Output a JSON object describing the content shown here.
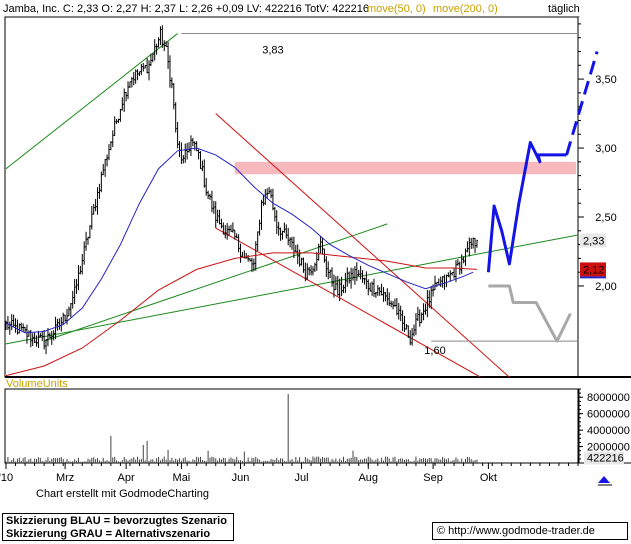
{
  "header": {
    "quote": "Jamba, Inc.  C: 2,33  O: 2,27  H: 2,37  L: 2,26  +0,09  LV: 422216  TotV: 422216",
    "ma50_label": "move(50, 0)",
    "ma200_label": "move(200, 0)",
    "period": "täglich"
  },
  "footer": {
    "made_with": "Chart erstellt mit GodmodeCharting",
    "legend_blue": "Skizzierung BLAU = bevorzugtes Szenario",
    "legend_grey": "Skizzierung GRAU = Alternativszenario",
    "copyright_symbol": "©",
    "url": "http://www.godmode-trader.de"
  },
  "colors": {
    "price": "#000000",
    "ma50": "#2424c8",
    "ma200": "#c81414",
    "trend_green": "#1a8a1a",
    "trend_red": "#d01010",
    "resistance_zone": "#f7b9bd",
    "scenario_blue": "#1414e6",
    "scenario_grey": "#a8a8a8",
    "ma50_text": "#c8a000",
    "volume_label": "#c8a000"
  },
  "chart_data": {
    "type": "candlestick",
    "title": "Jamba, Inc.",
    "price_axis": {
      "ticks": [
        2.0,
        2.5,
        3.0,
        3.5
      ],
      "tick_labels": [
        "2,00",
        "2,50",
        "3,00",
        "3,50"
      ],
      "range": [
        1.34,
        3.95
      ]
    },
    "volume_axis": {
      "ticks": [
        2000000,
        4000000,
        6000000,
        8000000
      ],
      "tick_labels": [
        "2000000",
        "4000000",
        "6000000",
        "8000000"
      ],
      "range": [
        0,
        9000000
      ]
    },
    "months": [
      "'10",
      "Mrz",
      "Apr",
      "Mai",
      "Jun",
      "Jul",
      "Aug",
      "Sep",
      "Okt"
    ],
    "month_start_index": [
      0,
      31,
      63,
      92,
      123,
      155,
      190,
      224,
      253
    ],
    "levels": {
      "high": {
        "value": 3.83,
        "label": "3,83"
      },
      "low": {
        "value": 1.6,
        "label": "1,60"
      }
    },
    "last_close": {
      "value": 2.33,
      "label": "2,33"
    },
    "ma200_last": {
      "value": 2.12,
      "label": "2,12"
    },
    "last_volume": {
      "value": 422216,
      "label": "422216"
    },
    "volume_label": "VolumeUnits",
    "resistance_zone": [
      2.81,
      2.9
    ],
    "anchors": [
      [
        0,
        1.72
      ],
      [
        8,
        1.68
      ],
      [
        14,
        1.62
      ],
      [
        20,
        1.6
      ],
      [
        26,
        1.68
      ],
      [
        31,
        1.78
      ],
      [
        36,
        1.95
      ],
      [
        41,
        2.25
      ],
      [
        46,
        2.55
      ],
      [
        51,
        2.85
      ],
      [
        56,
        3.1
      ],
      [
        61,
        3.35
      ],
      [
        65,
        3.5
      ],
      [
        70,
        3.55
      ],
      [
        75,
        3.6
      ],
      [
        78,
        3.72
      ],
      [
        81,
        3.82
      ],
      [
        84,
        3.7
      ],
      [
        87,
        3.45
      ],
      [
        90,
        3.0
      ],
      [
        93,
        2.9
      ],
      [
        97,
        3.05
      ],
      [
        101,
        2.95
      ],
      [
        105,
        2.7
      ],
      [
        110,
        2.5
      ],
      [
        115,
        2.4
      ],
      [
        120,
        2.35
      ],
      [
        125,
        2.2
      ],
      [
        130,
        2.15
      ],
      [
        134,
        2.6
      ],
      [
        138,
        2.7
      ],
      [
        142,
        2.45
      ],
      [
        147,
        2.35
      ],
      [
        152,
        2.25
      ],
      [
        157,
        2.1
      ],
      [
        161,
        2.15
      ],
      [
        165,
        2.3
      ],
      [
        169,
        2.1
      ],
      [
        174,
        1.95
      ],
      [
        179,
        2.05
      ],
      [
        184,
        2.1
      ],
      [
        190,
        2.0
      ],
      [
        195,
        1.98
      ],
      [
        200,
        1.9
      ],
      [
        204,
        1.85
      ],
      [
        208,
        1.72
      ],
      [
        212,
        1.63
      ],
      [
        216,
        1.75
      ],
      [
        221,
        1.88
      ],
      [
        226,
        2.0
      ],
      [
        231,
        2.05
      ],
      [
        236,
        2.12
      ],
      [
        240,
        2.2
      ],
      [
        244,
        2.3
      ],
      [
        247,
        2.33
      ]
    ],
    "volume_spikes": [
      [
        55,
        3300000
      ],
      [
        72,
        2200000
      ],
      [
        74,
        2700000
      ],
      [
        85,
        1600000
      ],
      [
        106,
        1500000
      ],
      [
        125,
        1400000
      ],
      [
        148,
        8400000
      ],
      [
        182,
        1500000
      ]
    ],
    "ma50_points": [
      [
        0,
        1.73
      ],
      [
        10,
        1.66
      ],
      [
        20,
        1.67
      ],
      [
        30,
        1.72
      ],
      [
        40,
        1.84
      ],
      [
        50,
        2.05
      ],
      [
        60,
        2.3
      ],
      [
        70,
        2.6
      ],
      [
        80,
        2.85
      ],
      [
        90,
        2.98
      ],
      [
        100,
        3.0
      ],
      [
        110,
        2.95
      ],
      [
        120,
        2.86
      ],
      [
        130,
        2.72
      ],
      [
        140,
        2.6
      ],
      [
        150,
        2.52
      ],
      [
        160,
        2.42
      ],
      [
        170,
        2.3
      ],
      [
        180,
        2.22
      ],
      [
        190,
        2.15
      ],
      [
        200,
        2.09
      ],
      [
        210,
        2.03
      ],
      [
        220,
        1.98
      ],
      [
        230,
        2.02
      ],
      [
        240,
        2.07
      ],
      [
        245,
        2.1
      ]
    ],
    "ma200_points": [
      [
        0,
        1.35
      ],
      [
        20,
        1.42
      ],
      [
        40,
        1.55
      ],
      [
        60,
        1.75
      ],
      [
        80,
        1.97
      ],
      [
        100,
        2.12
      ],
      [
        120,
        2.2
      ],
      [
        140,
        2.24
      ],
      [
        160,
        2.24
      ],
      [
        180,
        2.21
      ],
      [
        200,
        2.18
      ],
      [
        220,
        2.13
      ],
      [
        235,
        2.13
      ],
      [
        247,
        2.12
      ]
    ],
    "trendlines": [
      {
        "color": "green",
        "from": [
          0,
          2.85
        ],
        "to": [
          90,
          3.83
        ]
      },
      {
        "color": "green",
        "from": [
          0,
          1.58
        ],
        "to": [
          300,
          2.37
        ]
      },
      {
        "color": "green",
        "from": [
          20,
          1.6
        ],
        "to": [
          200,
          2.45
        ]
      },
      {
        "color": "red",
        "from": [
          110,
          3.25
        ],
        "to": [
          280,
          1.14
        ]
      },
      {
        "color": "red",
        "from": [
          110,
          2.42
        ],
        "to": [
          250,
          1.33
        ]
      }
    ],
    "scenario_blue": [
      [
        253,
        2.1
      ],
      [
        256,
        2.58
      ],
      [
        260,
        2.4
      ],
      [
        264,
        2.16
      ],
      [
        269,
        2.6
      ],
      [
        275,
        3.04
      ],
      [
        280,
        2.9
      ],
      [
        279,
        2.95
      ],
      [
        294,
        2.95
      ]
    ],
    "scenario_blue_dashed": [
      [
        294,
        2.95
      ],
      [
        310,
        3.7
      ]
    ],
    "scenario_grey": [
      [
        253,
        2.0
      ],
      [
        264,
        2.0
      ],
      [
        266,
        1.88
      ],
      [
        278,
        1.88
      ],
      [
        289,
        1.6
      ],
      [
        296,
        1.8
      ]
    ]
  }
}
